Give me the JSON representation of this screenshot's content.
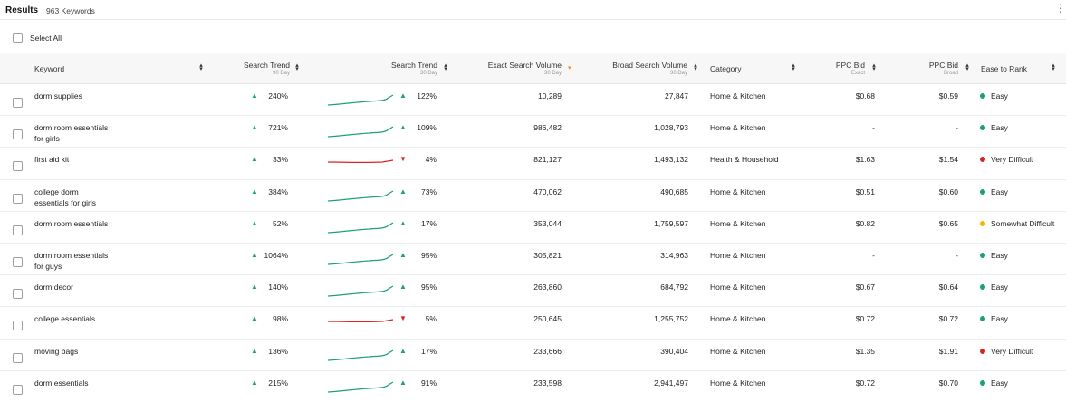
{
  "results": {
    "title": "Results",
    "count": "963 Keywords"
  },
  "select_all": {
    "label": "Select All"
  },
  "columns": {
    "keyword": "Keyword",
    "search_trend_90": {
      "label": "Search Trend",
      "sub": "90 Day"
    },
    "search_trend_30": {
      "label": "Search Trend",
      "sub": "30 Day"
    },
    "exact_volume": {
      "label": "Exact Search Volume",
      "sub": "30 Day"
    },
    "broad_volume": {
      "label": "Broad Search Volume",
      "sub": "30 Day"
    },
    "category": "Category",
    "ppc_exact": {
      "label": "PPC Bid",
      "sub": "Exact"
    },
    "ppc_broad": {
      "label": "PPC Bid",
      "sub": "Broad"
    },
    "ease": "Ease to Rank"
  },
  "colors": {
    "up": "#1aa36f",
    "down": "#d92323",
    "easy": "#1aa36f",
    "very_difficult": "#d92323",
    "somewhat_difficult": "#f5b800",
    "sort_active": "#f08a24"
  },
  "rows": [
    {
      "keyword_line1": "dorm supplies",
      "keyword_line2": "",
      "trend90": "240%",
      "trend90_dir": "up",
      "trend30": "122%",
      "trend30_dir": "up",
      "exact": "10,289",
      "broad": "27,847",
      "category": "Home & Kitchen",
      "ppc_exact": "$0.68",
      "ppc_broad": "$0.59",
      "ease": "Easy",
      "ease_level": "easy"
    },
    {
      "keyword_line1": "dorm room essentials",
      "keyword_line2": "for girls",
      "trend90": "721%",
      "trend90_dir": "up",
      "trend30": "109%",
      "trend30_dir": "up",
      "exact": "986,482",
      "broad": "1,028,793",
      "category": "Home & Kitchen",
      "ppc_exact": "-",
      "ppc_broad": "-",
      "ease": "Easy",
      "ease_level": "easy"
    },
    {
      "keyword_line1": "first aid kit",
      "keyword_line2": "",
      "trend90": "33%",
      "trend90_dir": "up",
      "trend30": "4%",
      "trend30_dir": "down",
      "exact": "821,127",
      "broad": "1,493,132",
      "category": "Health & Household",
      "ppc_exact": "$1.63",
      "ppc_broad": "$1.54",
      "ease": "Very Difficult",
      "ease_level": "very_difficult"
    },
    {
      "keyword_line1": "college dorm",
      "keyword_line2": "essentials for girls",
      "trend90": "384%",
      "trend90_dir": "up",
      "trend30": "73%",
      "trend30_dir": "up",
      "exact": "470,062",
      "broad": "490,685",
      "category": "Home & Kitchen",
      "ppc_exact": "$0.51",
      "ppc_broad": "$0.60",
      "ease": "Easy",
      "ease_level": "easy"
    },
    {
      "keyword_line1": "dorm room essentials",
      "keyword_line2": "",
      "trend90": "52%",
      "trend90_dir": "up",
      "trend30": "17%",
      "trend30_dir": "up",
      "exact": "353,044",
      "broad": "1,759,597",
      "category": "Home & Kitchen",
      "ppc_exact": "$0.82",
      "ppc_broad": "$0.65",
      "ease": "Somewhat Difficult",
      "ease_level": "somewhat_difficult"
    },
    {
      "keyword_line1": "dorm room essentials",
      "keyword_line2": "for guys",
      "trend90": "1064%",
      "trend90_dir": "up",
      "trend30": "95%",
      "trend30_dir": "up",
      "exact": "305,821",
      "broad": "314,963",
      "category": "Home & Kitchen",
      "ppc_exact": "-",
      "ppc_broad": "-",
      "ease": "Easy",
      "ease_level": "easy"
    },
    {
      "keyword_line1": "dorm decor",
      "keyword_line2": "",
      "trend90": "140%",
      "trend90_dir": "up",
      "trend30": "95%",
      "trend30_dir": "up",
      "exact": "263,860",
      "broad": "684,792",
      "category": "Home & Kitchen",
      "ppc_exact": "$0.67",
      "ppc_broad": "$0.64",
      "ease": "Easy",
      "ease_level": "easy"
    },
    {
      "keyword_line1": "college essentials",
      "keyword_line2": "",
      "trend90": "98%",
      "trend90_dir": "up",
      "trend30": "5%",
      "trend30_dir": "down",
      "exact": "250,645",
      "broad": "1,255,752",
      "category": "Home & Kitchen",
      "ppc_exact": "$0.72",
      "ppc_broad": "$0.72",
      "ease": "Easy",
      "ease_level": "easy"
    },
    {
      "keyword_line1": "moving bags",
      "keyword_line2": "",
      "trend90": "136%",
      "trend90_dir": "up",
      "trend30": "17%",
      "trend30_dir": "up",
      "exact": "233,666",
      "broad": "390,404",
      "category": "Home & Kitchen",
      "ppc_exact": "$1.35",
      "ppc_broad": "$1.91",
      "ease": "Very Difficult",
      "ease_level": "very_difficult"
    },
    {
      "keyword_line1": "dorm essentials",
      "keyword_line2": "",
      "trend90": "215%",
      "trend90_dir": "up",
      "trend30": "91%",
      "trend30_dir": "up",
      "exact": "233,598",
      "broad": "2,941,497",
      "category": "Home & Kitchen",
      "ppc_exact": "$0.72",
      "ppc_broad": "$0.70",
      "ease": "Easy",
      "ease_level": "easy"
    }
  ]
}
